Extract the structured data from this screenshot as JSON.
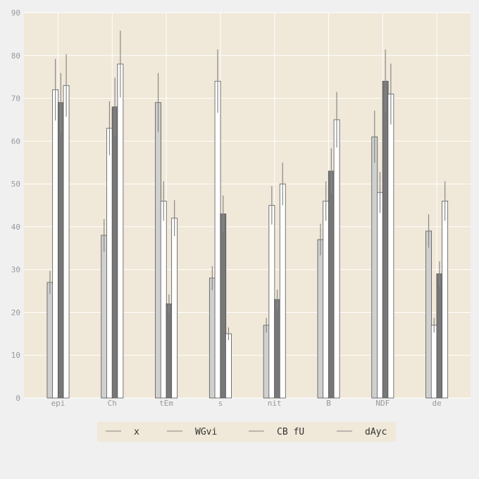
{
  "chart_data": {
    "type": "bar",
    "categories": [
      "epi",
      "Ch",
      "tEm",
      "s",
      "nit",
      "B",
      "NDF",
      "de"
    ],
    "series": [
      {
        "name": "x",
        "color": "#d0d0d0",
        "values": [
          27,
          38,
          69,
          28,
          17,
          37,
          61,
          39
        ],
        "errors": [
          2.7,
          3.8,
          6.9,
          2.8,
          1.7,
          3.7,
          6.1,
          3.9
        ]
      },
      {
        "name": "WGvi",
        "color": "#ffffff",
        "values": [
          72,
          63,
          46,
          74,
          45,
          46,
          48,
          17
        ],
        "errors": [
          7.2,
          6.3,
          4.6,
          7.4,
          4.5,
          4.6,
          4.8,
          1.7
        ]
      },
      {
        "name": "CB fU",
        "color": "#777777",
        "values": [
          69,
          68,
          22,
          43,
          23,
          53,
          74,
          29
        ],
        "errors": [
          6.9,
          6.8,
          2.2,
          4.3,
          2.3,
          5.3,
          7.4,
          2.9
        ]
      },
      {
        "name": "dAyc",
        "color": "#ffffff",
        "values": [
          73,
          78,
          42,
          15,
          50,
          65,
          71,
          46
        ],
        "errors": [
          7.3,
          7.8,
          4.2,
          1.5,
          5.0,
          6.5,
          7.1,
          4.6
        ]
      }
    ],
    "ylim": [
      0,
      90
    ],
    "yticks": [
      0,
      10,
      20,
      30,
      40,
      50,
      60,
      70,
      80,
      90
    ],
    "grid": true,
    "legend_position": "bottom-center",
    "background": "#f0e8d8"
  }
}
